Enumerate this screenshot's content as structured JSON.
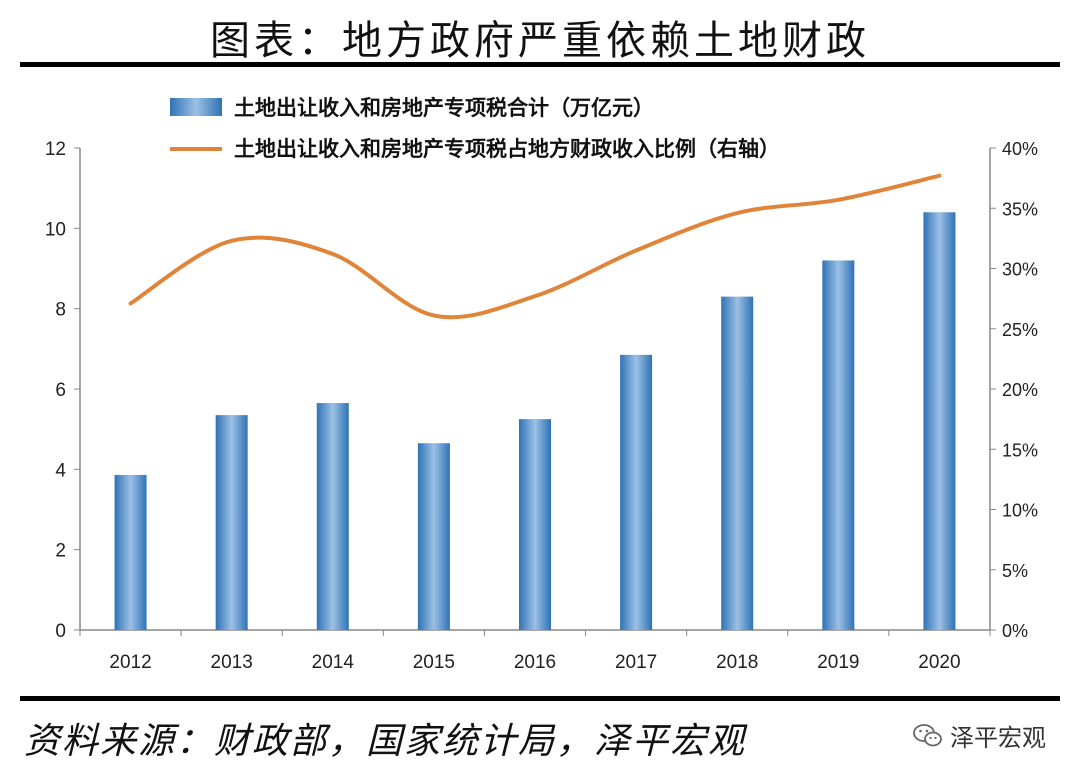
{
  "title": "图表：地方政府严重依赖土地财政",
  "source": "资料来源：财政部，国家统计局，泽平宏观",
  "brand": {
    "name": "泽平宏观",
    "icon": "wechat-icon"
  },
  "chart_data": {
    "type": "bar+line",
    "categories": [
      "2012",
      "2013",
      "2014",
      "2015",
      "2016",
      "2017",
      "2018",
      "2019",
      "2020"
    ],
    "series": [
      {
        "name": "土地出让收入和房地产专项税合计（万亿元）",
        "type": "bar",
        "axis": "left",
        "color": "#3a7fc0",
        "values": [
          3.86,
          5.35,
          5.65,
          4.65,
          5.25,
          6.85,
          8.3,
          9.2,
          10.4
        ]
      },
      {
        "name": "土地出让收入和房地产专项税占地方财政收入比例（右轴）",
        "type": "line",
        "axis": "right",
        "color": "#e0843a",
        "smooth": true,
        "values": [
          27.1,
          32.3,
          31.2,
          26.1,
          27.7,
          31.5,
          34.6,
          35.7,
          37.7
        ]
      }
    ],
    "left_axis": {
      "ylim": [
        0,
        12
      ],
      "ticks": [
        "0",
        "2",
        "4",
        "6",
        "8",
        "10",
        "12"
      ]
    },
    "right_axis": {
      "ylim": [
        0,
        40
      ],
      "ticks": [
        "0%",
        "5%",
        "10%",
        "15%",
        "20%",
        "25%",
        "30%",
        "35%",
        "40%"
      ]
    },
    "grid": false,
    "legend": "top"
  }
}
